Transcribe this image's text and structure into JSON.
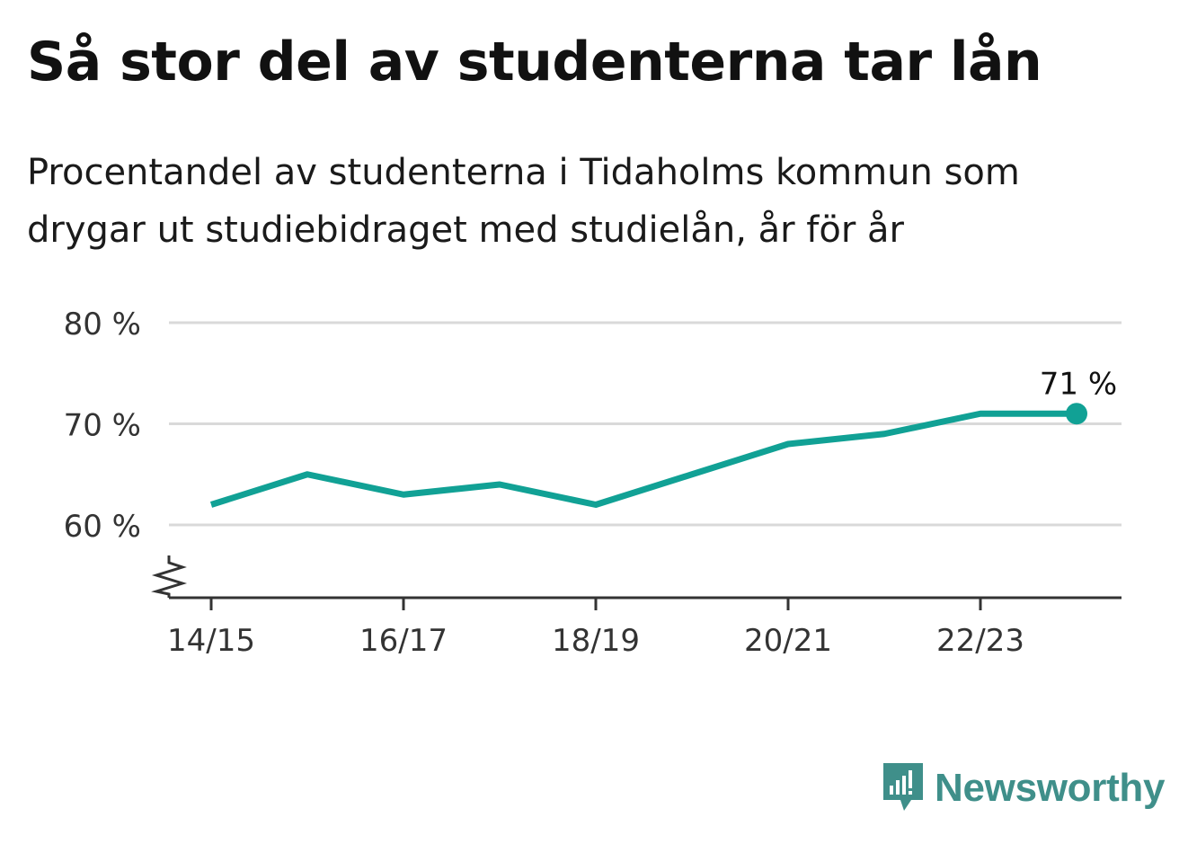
{
  "header": {
    "title": "Så stor del av studenterna tar lån",
    "subtitle": "Procentandel av studenterna i Tidaholms kommun som drygar ut studiebidraget med studielån, år för år"
  },
  "brand": {
    "name": "Newsworthy",
    "icon": "newsworthy-logo-icon",
    "color": "#3f8f8a"
  },
  "chart_data": {
    "type": "line",
    "title": "Så stor del av studenterna tar lån",
    "subtitle": "Procentandel av studenterna i Tidaholms kommun som drygar ut studiebidraget med studielån, år för år",
    "x": [
      "14/15",
      "15/16",
      "16/17",
      "17/18",
      "18/19",
      "19/20",
      "20/21",
      "21/22",
      "22/23",
      "23/24"
    ],
    "x_tick_labels": [
      "14/15",
      "16/17",
      "18/19",
      "20/21",
      "22/23"
    ],
    "series": [
      {
        "values": [
          62,
          65,
          63,
          64,
          62,
          65,
          68,
          69,
          71,
          71
        ],
        "color": "#11a195"
      }
    ],
    "y_ticks": [
      60,
      70,
      80
    ],
    "y_tick_labels": [
      "60 %",
      "70 %",
      "80 %"
    ],
    "ylim": [
      53,
      80
    ],
    "axis_break": true,
    "grid": true,
    "last_value_label": "71 %"
  }
}
